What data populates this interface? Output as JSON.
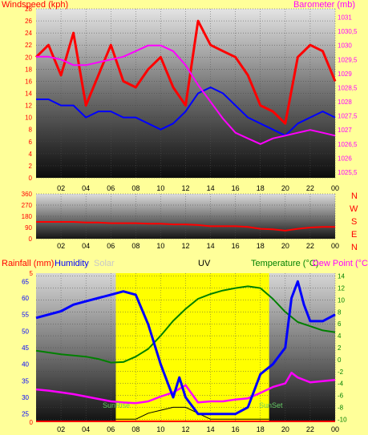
{
  "colors": {
    "background": "#ffff99",
    "wind": "#ff0000",
    "gust": "#ff0000",
    "windAvg": "#0000ff",
    "baro": "#ff00ff",
    "direction": "#ff0000",
    "humidity": "#0000ff",
    "temperature": "#008000",
    "dewpoint": "#ff00ff",
    "solar": "#c8c8c8",
    "uv": "#000000",
    "daylight": "#ffff00",
    "rain": "#ff0000",
    "sunrise_label": "#66cc66"
  },
  "chart_data": [
    {
      "type": "line",
      "id": "wind-baro",
      "title": "",
      "left_label": "Windspeed (kph)",
      "right_label": "Barometer (mb)",
      "x_ticks": [
        "02",
        "04",
        "06",
        "08",
        "10",
        "12",
        "14",
        "16",
        "18",
        "20",
        "22",
        "00"
      ],
      "y_left_ticks": [
        "0",
        "2",
        "4",
        "6",
        "8",
        "10",
        "12",
        "14",
        "16",
        "18",
        "20",
        "22",
        "24",
        "26",
        "28"
      ],
      "y_left_lim": [
        0,
        28
      ],
      "y_right_ticks": [
        "1025,5",
        "1026",
        "1026,5",
        "1027",
        "1027,5",
        "1028",
        "1028,5",
        "1029",
        "1029,5",
        "1030",
        "1030,5",
        "1031"
      ],
      "y_right_lim": [
        1025.3,
        1031.3
      ],
      "x_lim": [
        0,
        24
      ],
      "series": [
        {
          "key": "gust",
          "x": [
            0,
            1,
            2,
            3,
            4,
            5,
            6,
            7,
            8,
            9,
            10,
            11,
            12,
            13,
            14,
            15,
            16,
            17,
            18,
            19,
            20,
            21,
            22,
            23,
            24
          ],
          "values": [
            20,
            22,
            17,
            24,
            12,
            17,
            22,
            16,
            15,
            18,
            20,
            15,
            12,
            26,
            22,
            21,
            20,
            17,
            12,
            11,
            9,
            20,
            22,
            21,
            16
          ]
        },
        {
          "key": "average",
          "x": [
            0,
            1,
            2,
            3,
            4,
            5,
            6,
            7,
            8,
            9,
            10,
            11,
            12,
            13,
            14,
            15,
            16,
            17,
            18,
            19,
            20,
            21,
            22,
            23,
            24
          ],
          "values": [
            13,
            13,
            12,
            12,
            10,
            11,
            11,
            10,
            10,
            9,
            8,
            9,
            11,
            14,
            15,
            14,
            12,
            10,
            9,
            8,
            7,
            9,
            10,
            11,
            10
          ]
        },
        {
          "key": "baro",
          "x": [
            0,
            1,
            2,
            3,
            4,
            5,
            6,
            7,
            8,
            9,
            10,
            11,
            12,
            13,
            14,
            15,
            16,
            17,
            18,
            19,
            20,
            21,
            22,
            23,
            24
          ],
          "values": [
            1029.6,
            1029.6,
            1029.5,
            1029.3,
            1029.3,
            1029.4,
            1029.5,
            1029.6,
            1029.8,
            1030.0,
            1030.0,
            1029.8,
            1029.3,
            1028.6,
            1028.0,
            1027.4,
            1026.9,
            1026.7,
            1026.5,
            1026.7,
            1026.8,
            1026.9,
            1027.0,
            1026.9,
            1026.8
          ]
        }
      ]
    },
    {
      "type": "line",
      "id": "wind-direction",
      "title": "",
      "y_ticks": [
        "0",
        "90",
        "180",
        "270",
        "360"
      ],
      "y_lim": [
        0,
        360
      ],
      "x_ticks": [
        "02",
        "04",
        "06",
        "08",
        "10",
        "12",
        "14",
        "16",
        "18",
        "20",
        "22",
        "00"
      ],
      "x_lim": [
        0,
        24
      ],
      "compass": [
        "N",
        "W",
        "S",
        "E",
        "N"
      ],
      "series": [
        {
          "key": "direction",
          "x": [
            0,
            1,
            2,
            3,
            4,
            5,
            6,
            7,
            8,
            9,
            10,
            11,
            12,
            13,
            14,
            15,
            16,
            17,
            18,
            19,
            20,
            21,
            22,
            23,
            24
          ],
          "values": [
            135,
            135,
            135,
            135,
            130,
            130,
            125,
            125,
            125,
            120,
            120,
            115,
            115,
            110,
            100,
            100,
            100,
            95,
            80,
            75,
            65,
            80,
            90,
            95,
            95
          ]
        }
      ]
    },
    {
      "type": "line",
      "id": "temp-hum",
      "title": "",
      "headers": {
        "rain": "Rainfall (mm)",
        "humidity": "Humidity",
        "solar": "Solar",
        "uv": "UV",
        "temperature": "Temperature (°C)",
        "dewpoint": "Dew Point (°C"
      },
      "y_left_ticks": [
        "25",
        "30",
        "35",
        "40",
        "45",
        "50",
        "55",
        "60",
        "65"
      ],
      "y_left_lim": [
        22.5,
        67.5
      ],
      "y_right_ticks": [
        "-10",
        "-8",
        "-6",
        "-4",
        "-2",
        "0",
        "2",
        "4",
        "6",
        "8",
        "10",
        "12",
        "14"
      ],
      "y_right_lim": [
        -10.5,
        14.5
      ],
      "rain_ticks": [
        "0",
        "5"
      ],
      "x_ticks": [
        "02",
        "04",
        "06",
        "08",
        "10",
        "12",
        "14",
        "16",
        "18",
        "20",
        "22",
        "00"
      ],
      "x_lim": [
        0,
        24
      ],
      "daylight_hours": [
        6.4,
        18.7
      ],
      "annotations": {
        "sunrise": "SunRise",
        "sunset": "SunSet"
      },
      "series": [
        {
          "key": "humidity",
          "x": [
            0,
            1,
            2,
            3,
            4,
            5,
            6,
            7,
            8,
            9,
            10,
            11,
            11.5,
            12,
            13,
            14,
            15,
            16,
            17,
            18,
            19,
            20,
            20.5,
            21,
            21.5,
            22,
            23,
            24
          ],
          "values": [
            54,
            55,
            56,
            58,
            59,
            60,
            61,
            62,
            61,
            52,
            40,
            30,
            36,
            30,
            25,
            25,
            25,
            25,
            27,
            37,
            40,
            45,
            60,
            65,
            58,
            53,
            53,
            55
          ]
        },
        {
          "key": "temperature",
          "x": [
            0,
            1,
            2,
            3,
            4,
            5,
            6,
            7,
            8,
            9,
            10,
            11,
            12,
            13,
            14,
            15,
            16,
            17,
            18,
            19,
            20,
            21,
            22,
            23,
            24
          ],
          "values": [
            1.5,
            1.2,
            0.9,
            0.7,
            0.5,
            0.1,
            -0.5,
            -0.4,
            0.5,
            1.8,
            4.0,
            6.5,
            8.5,
            10.2,
            11.0,
            11.6,
            12.0,
            12.3,
            12.0,
            10.2,
            8.0,
            6.3,
            5.6,
            4.9,
            4.6
          ]
        },
        {
          "key": "dewpoint",
          "x": [
            0,
            1,
            2,
            3,
            4,
            5,
            6,
            7,
            8,
            9,
            10,
            11,
            12,
            13,
            14,
            15,
            16,
            17,
            18,
            19,
            20,
            20.5,
            21,
            22,
            23,
            24
          ],
          "values": [
            -5.0,
            -5.2,
            -5.5,
            -5.8,
            -6.2,
            -6.6,
            -7.0,
            -7.2,
            -7.3,
            -7.0,
            -6.2,
            -5.5,
            -4.3,
            -7.2,
            -7.0,
            -7.0,
            -6.7,
            -6.5,
            -5.6,
            -4.6,
            -4.0,
            -2.2,
            -3.0,
            -3.8,
            -3.6,
            -3.4
          ]
        },
        {
          "key": "uv",
          "x": [
            6.4,
            8,
            9,
            10,
            11,
            12,
            13,
            14,
            15,
            16,
            17,
            18.7
          ],
          "values": [
            -10,
            -10,
            -9,
            -8.5,
            -8,
            -8,
            -9,
            -10,
            -10,
            -10,
            -10,
            -10
          ]
        },
        {
          "key": "rain",
          "x": [
            0,
            24
          ],
          "values": [
            0,
            0
          ]
        }
      ]
    }
  ]
}
